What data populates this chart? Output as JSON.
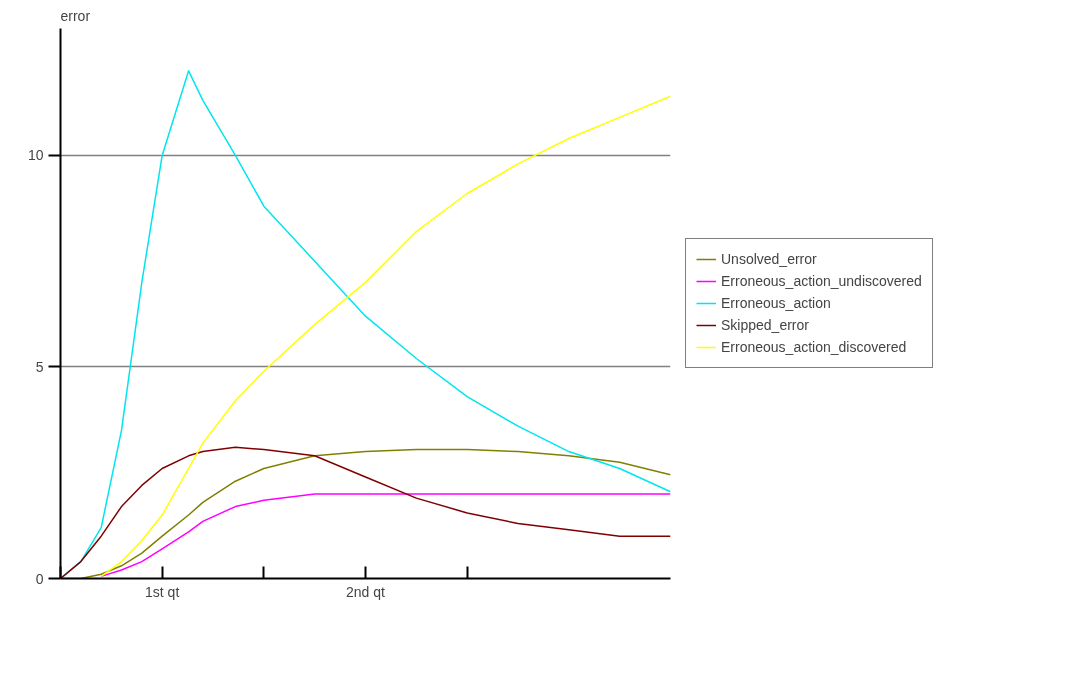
{
  "chart_data": {
    "type": "line",
    "ylabel": "error",
    "x": [
      0,
      0.1,
      0.2,
      0.3,
      0.4,
      0.5,
      0.63,
      0.7,
      0.86,
      1.0,
      1.25,
      1.5,
      1.75,
      2.0,
      2.25,
      2.5,
      2.75,
      3.0
    ],
    "series": [
      {
        "name": "Unsolved_error",
        "color": "#808000",
        "values": [
          0,
          0,
          0.1,
          0.3,
          0.6,
          1.0,
          1.5,
          1.8,
          2.3,
          2.6,
          2.9,
          3.0,
          3.05,
          3.05,
          3.0,
          2.9,
          2.75,
          2.45
        ]
      },
      {
        "name": "Erroneous_action_undiscovered",
        "color": "#ff00ff",
        "values": [
          null,
          null,
          0.05,
          0.2,
          0.4,
          0.7,
          1.1,
          1.35,
          1.7,
          1.85,
          2.0,
          2.0,
          2.0,
          2.0,
          2.0,
          2.0,
          2.0,
          2.0
        ]
      },
      {
        "name": "Erroneous_action",
        "color": "#00e5ee",
        "values": [
          0,
          0.4,
          1.2,
          3.5,
          7,
          10,
          12,
          11.3,
          10,
          8.8,
          7.5,
          6.2,
          5.2,
          4.3,
          3.6,
          3.0,
          2.6,
          2.05
        ]
      },
      {
        "name": "Skipped_error",
        "color": "#800000",
        "values": [
          0,
          0.4,
          1.0,
          1.7,
          2.2,
          2.6,
          2.9,
          3.0,
          3.1,
          3.05,
          2.9,
          2.4,
          1.9,
          1.55,
          1.3,
          1.15,
          1.0,
          1.0
        ]
      },
      {
        "name": "Erroneous_action_discovered",
        "color": "#ffff00",
        "values": [
          null,
          null,
          0.05,
          0.4,
          0.9,
          1.5,
          2.6,
          3.2,
          4.2,
          4.9,
          6.0,
          7.0,
          8.2,
          9.1,
          9.8,
          10.4,
          10.9,
          11.4
        ]
      }
    ],
    "xlim": [
      0,
      3
    ],
    "xticks": [
      {
        "value": 0,
        "label": null
      },
      {
        "value": 0.5,
        "label": "1st qt"
      },
      {
        "value": 1,
        "label": null
      },
      {
        "value": 1.5,
        "label": "2nd qt"
      },
      {
        "value": 2,
        "label": null
      }
    ],
    "ylim": [
      0,
      13
    ],
    "yticks": [
      0,
      5,
      10
    ],
    "grid": "y",
    "legend": "right"
  }
}
